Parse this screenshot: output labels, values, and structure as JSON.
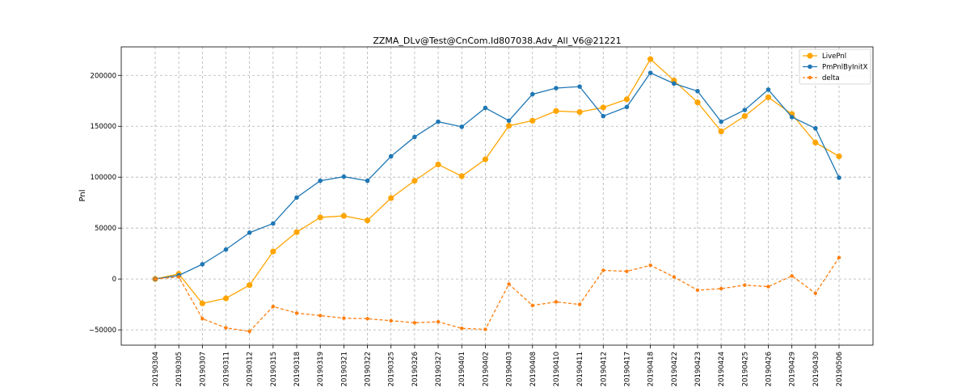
{
  "chart_data": {
    "type": "line",
    "title": "ZZMA_DLv@Test@CnCom.Id807038.Adv_All_V6@21221",
    "xlabel": "",
    "ylabel": "Pnl",
    "grid": true,
    "legend_position": "top-right",
    "ylim": [
      -65000,
      228000
    ],
    "yticks": [
      -50000,
      0,
      50000,
      100000,
      150000,
      200000
    ],
    "categories": [
      "20190304",
      "20190305",
      "20190307",
      "20190311",
      "20190312",
      "20190315",
      "20190318",
      "20190319",
      "20190321",
      "20190322",
      "20190325",
      "20190326",
      "20190327",
      "20190401",
      "20190402",
      "20190403",
      "20190408",
      "20190410",
      "20190411",
      "20190412",
      "20190417",
      "20190418",
      "20190422",
      "20190423",
      "20190424",
      "20190425",
      "20190426",
      "20190429",
      "20190430",
      "20190506"
    ],
    "series": [
      {
        "name": "LivePnl",
        "color": "#ffa500",
        "linestyle": "solid",
        "marker_radius": 3.6,
        "values": [
          0,
          5000,
          -24000,
          -19000,
          -6000,
          27000,
          46000,
          60500,
          62000,
          57500,
          79500,
          96500,
          112500,
          101000,
          117500,
          150500,
          155500,
          165000,
          164000,
          168500,
          176500,
          216000,
          195000,
          173500,
          145000,
          160000,
          178500,
          162000,
          134000,
          120500
        ]
      },
      {
        "name": "PmPnlByInitX",
        "color": "#1f77b4",
        "linestyle": "solid",
        "marker_radius": 2.8,
        "values": [
          0,
          3500,
          14500,
          29000,
          45500,
          54500,
          80000,
          96500,
          100500,
          96500,
          120500,
          139500,
          154500,
          149500,
          168000,
          155500,
          181500,
          187500,
          189000,
          160000,
          169000,
          202500,
          192000,
          184500,
          154500,
          166000,
          186000,
          159000,
          148000,
          99500
        ]
      },
      {
        "name": "delta",
        "color": "#ff7f0e",
        "linestyle": "dashed",
        "marker_radius": 2.2,
        "values": [
          0,
          2000,
          -39000,
          -48000,
          -51500,
          -27000,
          -33500,
          -36000,
          -38500,
          -39000,
          -41000,
          -43000,
          -42000,
          -48500,
          -49500,
          -5000,
          -26000,
          -22500,
          -25000,
          8500,
          7500,
          13500,
          2000,
          -11000,
          -9500,
          -6000,
          -7500,
          3000,
          -14000,
          21000
        ]
      }
    ]
  }
}
